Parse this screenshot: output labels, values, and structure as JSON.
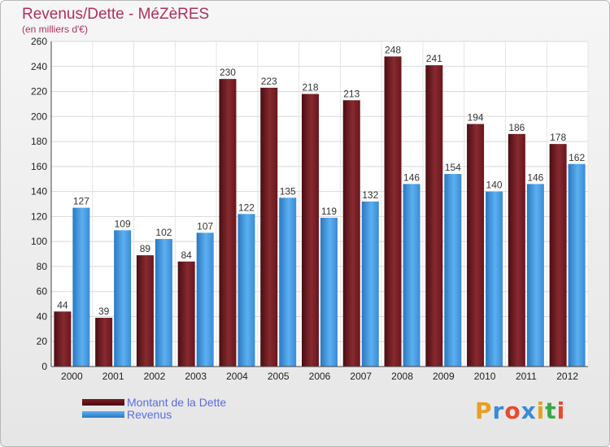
{
  "header": {
    "title": "Revenus/Dette - MéZèRES",
    "subtitle": "(en milliers d'€)"
  },
  "chart_data": {
    "type": "bar",
    "title": "Revenus/Dette - MéZèRES",
    "subtitle": "(en milliers d'€)",
    "xlabel": "",
    "ylabel": "",
    "ylim": [
      0,
      260
    ],
    "yticks": [
      0,
      20,
      40,
      60,
      80,
      100,
      120,
      140,
      160,
      180,
      200,
      220,
      240,
      260
    ],
    "grid": true,
    "legend_position": "bottom-left",
    "categories": [
      "2000",
      "2001",
      "2002",
      "2003",
      "2004",
      "2005",
      "2006",
      "2007",
      "2008",
      "2009",
      "2010",
      "2011",
      "2012"
    ],
    "series": [
      {
        "name": "Montant de la Dette",
        "color": "#7a1c22",
        "values": [
          44,
          39,
          89,
          84,
          230,
          223,
          218,
          213,
          248,
          241,
          194,
          186,
          178
        ]
      },
      {
        "name": "Revenus",
        "color": "#4a9ee0",
        "values": [
          127,
          109,
          102,
          107,
          122,
          135,
          119,
          132,
          146,
          154,
          140,
          146,
          162
        ]
      }
    ]
  },
  "logo": {
    "text": "Proxiti",
    "colors": [
      "#e8a020",
      "#3a8ad8",
      "#e84a2a",
      "#3a8ad8",
      "#e8a020",
      "#3aa848",
      "#e84a2a"
    ]
  }
}
